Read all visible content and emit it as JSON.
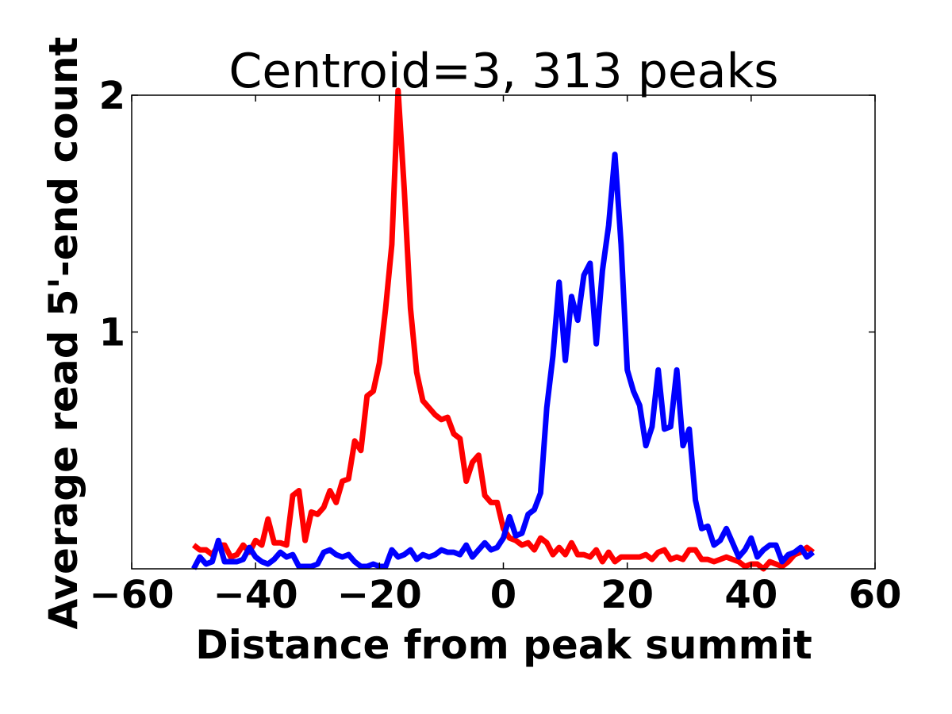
{
  "chart_data": {
    "type": "line",
    "title": "Centroid=3, 313 peaks",
    "xlabel": "Distance from peak summit",
    "ylabel": "Average read 5'-end count",
    "xlim": [
      -60,
      60
    ],
    "ylim": [
      0,
      2
    ],
    "x_ticks": [
      -60,
      -40,
      -20,
      0,
      20,
      40,
      60
    ],
    "x_tick_labels": [
      "−60",
      "−40",
      "−20",
      "0",
      "20",
      "40",
      "60"
    ],
    "y_ticks": [
      1,
      2
    ],
    "y_tick_labels": [
      "1",
      "2"
    ],
    "grid": false,
    "legend": "none",
    "x": [
      -50,
      -49,
      -48,
      -47,
      -46,
      -45,
      -44,
      -43,
      -42,
      -41,
      -40,
      -39,
      -38,
      -37,
      -36,
      -35,
      -34,
      -33,
      -32,
      -31,
      -30,
      -29,
      -28,
      -27,
      -26,
      -25,
      -24,
      -23,
      -22,
      -21,
      -20,
      -19,
      -18,
      -17,
      -16,
      -15,
      -14,
      -13,
      -12,
      -11,
      -10,
      -9,
      -8,
      -7,
      -6,
      -5,
      -4,
      -3,
      -2,
      -1,
      0,
      1,
      2,
      3,
      4,
      5,
      6,
      7,
      8,
      9,
      10,
      11,
      12,
      13,
      14,
      15,
      16,
      17,
      18,
      19,
      20,
      21,
      22,
      23,
      24,
      25,
      26,
      27,
      28,
      29,
      30,
      31,
      32,
      33,
      34,
      35,
      36,
      37,
      38,
      39,
      40,
      41,
      42,
      43,
      44,
      45,
      46,
      47,
      48,
      49,
      50
    ],
    "series": [
      {
        "name": "red",
        "color": "#ff0000",
        "values": [
          0.1,
          0.08,
          0.08,
          0.06,
          0.1,
          0.1,
          0.05,
          0.06,
          0.1,
          0.07,
          0.12,
          0.1,
          0.21,
          0.11,
          0.11,
          0.1,
          0.31,
          0.33,
          0.12,
          0.24,
          0.23,
          0.26,
          0.33,
          0.28,
          0.37,
          0.38,
          0.54,
          0.5,
          0.73,
          0.75,
          0.87,
          1.1,
          1.37,
          2.02,
          1.6,
          1.1,
          0.83,
          0.71,
          0.68,
          0.65,
          0.63,
          0.64,
          0.57,
          0.55,
          0.37,
          0.45,
          0.48,
          0.31,
          0.28,
          0.28,
          0.17,
          0.13,
          0.12,
          0.1,
          0.11,
          0.08,
          0.13,
          0.11,
          0.06,
          0.09,
          0.06,
          0.11,
          0.06,
          0.06,
          0.05,
          0.08,
          0.03,
          0.07,
          0.03,
          0.05,
          0.05,
          0.05,
          0.05,
          0.06,
          0.04,
          0.07,
          0.08,
          0.04,
          0.05,
          0.04,
          0.08,
          0.08,
          0.04,
          0.04,
          0.03,
          0.04,
          0.05,
          0.04,
          0.03,
          0.01,
          0.02,
          0.02,
          0.0,
          0.03,
          0.02,
          0.01,
          0.03,
          0.06,
          0.07,
          0.09,
          0.07
        ]
      },
      {
        "name": "blue",
        "color": "#0000ff",
        "values": [
          0.0,
          0.05,
          0.02,
          0.03,
          0.12,
          0.03,
          0.03,
          0.03,
          0.04,
          0.09,
          0.05,
          0.03,
          0.02,
          0.04,
          0.07,
          0.05,
          0.06,
          0.01,
          0.01,
          0.01,
          0.02,
          0.07,
          0.08,
          0.06,
          0.05,
          0.06,
          0.03,
          0.01,
          0.01,
          0.02,
          0.01,
          0.01,
          0.08,
          0.05,
          0.06,
          0.08,
          0.04,
          0.06,
          0.05,
          0.06,
          0.08,
          0.07,
          0.07,
          0.06,
          0.1,
          0.05,
          0.08,
          0.11,
          0.08,
          0.09,
          0.13,
          0.22,
          0.14,
          0.15,
          0.23,
          0.25,
          0.32,
          0.68,
          0.9,
          1.21,
          0.88,
          1.15,
          1.05,
          1.24,
          1.29,
          0.95,
          1.26,
          1.45,
          1.75,
          1.37,
          0.84,
          0.75,
          0.69,
          0.52,
          0.6,
          0.84,
          0.59,
          0.6,
          0.84,
          0.52,
          0.59,
          0.29,
          0.17,
          0.18,
          0.1,
          0.12,
          0.17,
          0.11,
          0.05,
          0.08,
          0.13,
          0.05,
          0.08,
          0.1,
          0.1,
          0.03,
          0.06,
          0.07,
          0.09,
          0.05,
          0.07
        ]
      }
    ]
  }
}
